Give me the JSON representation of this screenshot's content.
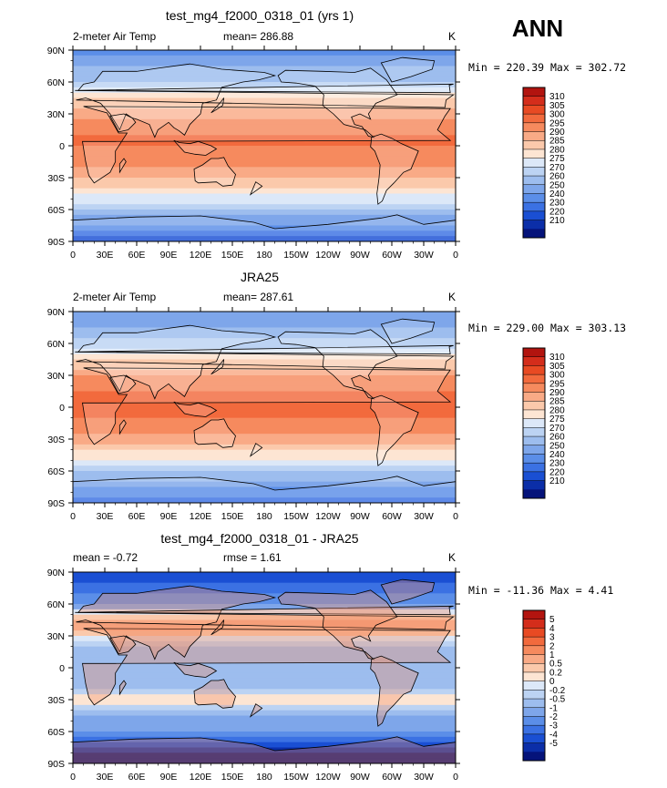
{
  "season": "ANN",
  "panels": [
    {
      "title": "test_mg4_f2000_0318_01 (yrs 1)",
      "left_label": "2-meter Air Temp",
      "center_label": "mean= 286.88",
      "right_label": "K",
      "minmax": "Min = 220.39 Max = 302.72",
      "colorbar_labels": [
        "310",
        "305",
        "300",
        "295",
        "290",
        "285",
        "280",
        "275",
        "270",
        "260",
        "250",
        "240",
        "230",
        "220",
        "210"
      ],
      "colorbar_colors": [
        "#b2140f",
        "#d42d1b",
        "#e84a23",
        "#f26a3d",
        "#f68a5e",
        "#f9aa86",
        "#fbc9ab",
        "#fde5d3",
        "#dce8f8",
        "#bcd3f3",
        "#9dbdee",
        "#7ea6ea",
        "#5b8ee8",
        "#3b71e3",
        "#1a4fd3",
        "#0b2ea8",
        "#05137a"
      ],
      "chart_data": {
        "type": "heatmap",
        "title": "test_mg4_f2000_0318_01 (yrs 1)",
        "variable": "2-meter Air Temp",
        "units": "K",
        "mean": 286.88,
        "min": 220.39,
        "max": 302.72,
        "contour_levels": [
          210,
          220,
          230,
          240,
          250,
          260,
          270,
          275,
          280,
          285,
          290,
          295,
          300,
          305,
          310
        ],
        "x_ticks": [
          "0",
          "30E",
          "60E",
          "90E",
          "120E",
          "150E",
          "180",
          "150W",
          "120W",
          "90W",
          "60W",
          "30W",
          "0"
        ],
        "y_ticks": [
          "90N",
          "60N",
          "30N",
          "0",
          "30S",
          "60S",
          "90S"
        ],
        "lat_profile": [
          [
            90,
            248
          ],
          [
            80,
            255
          ],
          [
            70,
            262
          ],
          [
            60,
            271
          ],
          [
            50,
            280
          ],
          [
            40,
            287
          ],
          [
            30,
            293
          ],
          [
            20,
            298
          ],
          [
            10,
            300
          ],
          [
            0,
            300
          ],
          [
            -10,
            299
          ],
          [
            -20,
            296
          ],
          [
            -30,
            291
          ],
          [
            -40,
            285
          ],
          [
            -50,
            278
          ],
          [
            -60,
            270
          ],
          [
            -70,
            255
          ],
          [
            -80,
            240
          ],
          [
            -90,
            226
          ]
        ]
      }
    },
    {
      "title": "JRA25",
      "left_label": "2-meter Air Temp",
      "center_label": "mean= 287.61",
      "right_label": "K",
      "minmax": "Min = 229.00 Max = 303.13",
      "colorbar_labels": [
        "310",
        "305",
        "300",
        "295",
        "290",
        "285",
        "280",
        "275",
        "270",
        "260",
        "250",
        "240",
        "230",
        "220",
        "210"
      ],
      "colorbar_colors": [
        "#b2140f",
        "#d42d1b",
        "#e84a23",
        "#f26a3d",
        "#f68a5e",
        "#f9aa86",
        "#fbc9ab",
        "#fde5d3",
        "#dce8f8",
        "#bcd3f3",
        "#9dbdee",
        "#7ea6ea",
        "#5b8ee8",
        "#3b71e3",
        "#1a4fd3",
        "#0b2ea8",
        "#05137a"
      ],
      "chart_data": {
        "type": "heatmap",
        "title": "JRA25",
        "variable": "2-meter Air Temp",
        "units": "K",
        "mean": 287.61,
        "min": 229.0,
        "max": 303.13,
        "contour_levels": [
          210,
          220,
          230,
          240,
          250,
          260,
          270,
          275,
          280,
          285,
          290,
          295,
          300,
          305,
          310
        ],
        "x_ticks": [
          "0",
          "30E",
          "60E",
          "90E",
          "120E",
          "150E",
          "180",
          "150W",
          "120W",
          "90W",
          "60W",
          "30W",
          "0"
        ],
        "y_ticks": [
          "90N",
          "60N",
          "30N",
          "0",
          "30S",
          "60S",
          "90S"
        ],
        "lat_profile": [
          [
            90,
            252
          ],
          [
            80,
            258
          ],
          [
            70,
            264
          ],
          [
            60,
            272
          ],
          [
            50,
            281
          ],
          [
            40,
            288
          ],
          [
            30,
            294
          ],
          [
            20,
            299
          ],
          [
            10,
            301
          ],
          [
            0,
            301
          ],
          [
            -10,
            300
          ],
          [
            -20,
            297
          ],
          [
            -30,
            292
          ],
          [
            -40,
            286
          ],
          [
            -50,
            279
          ],
          [
            -60,
            271
          ],
          [
            -70,
            257
          ],
          [
            -80,
            243
          ],
          [
            -90,
            231
          ]
        ]
      }
    },
    {
      "title": "test_mg4_f2000_0318_01 - JRA25",
      "left_label": "mean =   -0.72",
      "center_label": "rmse =    1.61",
      "right_label": "K",
      "minmax": "Min = -11.36 Max =    4.41",
      "colorbar_labels": [
        "5",
        "4",
        "3",
        "2",
        "1",
        "0.5",
        "0.2",
        "0",
        "-0.2",
        "-0.5",
        "-1",
        "-2",
        "-3",
        "-4",
        "-5"
      ],
      "colorbar_colors": [
        "#b2140f",
        "#d42d1b",
        "#e84a23",
        "#f26a3d",
        "#f68a5e",
        "#f9aa86",
        "#fbc9ab",
        "#fde5d3",
        "#dce8f8",
        "#bcd3f3",
        "#9dbdee",
        "#7ea6ea",
        "#5b8ee8",
        "#3b71e3",
        "#1a4fd3",
        "#0b2ea8",
        "#05137a"
      ],
      "chart_data": {
        "type": "heatmap",
        "title": "test_mg4_f2000_0318_01 - JRA25",
        "units": "K",
        "mean": -0.72,
        "rmse": 1.61,
        "min": -11.36,
        "max": 4.41,
        "contour_levels": [
          -5,
          -4,
          -3,
          -2,
          -1,
          -0.5,
          -0.2,
          0,
          0.2,
          0.5,
          1,
          2,
          3,
          4,
          5
        ],
        "x_ticks": [
          "0",
          "30E",
          "60E",
          "90E",
          "120E",
          "150E",
          "180",
          "150W",
          "120W",
          "90W",
          "60W",
          "30W",
          "0"
        ],
        "y_ticks": [
          "90N",
          "60N",
          "30N",
          "0",
          "30S",
          "60S",
          "90S"
        ],
        "lat_profile": [
          [
            90,
            -4
          ],
          [
            80,
            -3
          ],
          [
            70,
            -2
          ],
          [
            60,
            -1
          ],
          [
            50,
            0.5
          ],
          [
            40,
            1.5
          ],
          [
            30,
            0.2
          ],
          [
            20,
            -0.3
          ],
          [
            10,
            -0.5
          ],
          [
            0,
            -0.3
          ],
          [
            -10,
            -0.5
          ],
          [
            -20,
            -0.4
          ],
          [
            -30,
            0.5
          ],
          [
            -40,
            -0.3
          ],
          [
            -50,
            -0.7
          ],
          [
            -60,
            -1
          ],
          [
            -70,
            -3
          ],
          [
            -80,
            -5
          ],
          [
            -90,
            -6
          ]
        ]
      }
    }
  ]
}
